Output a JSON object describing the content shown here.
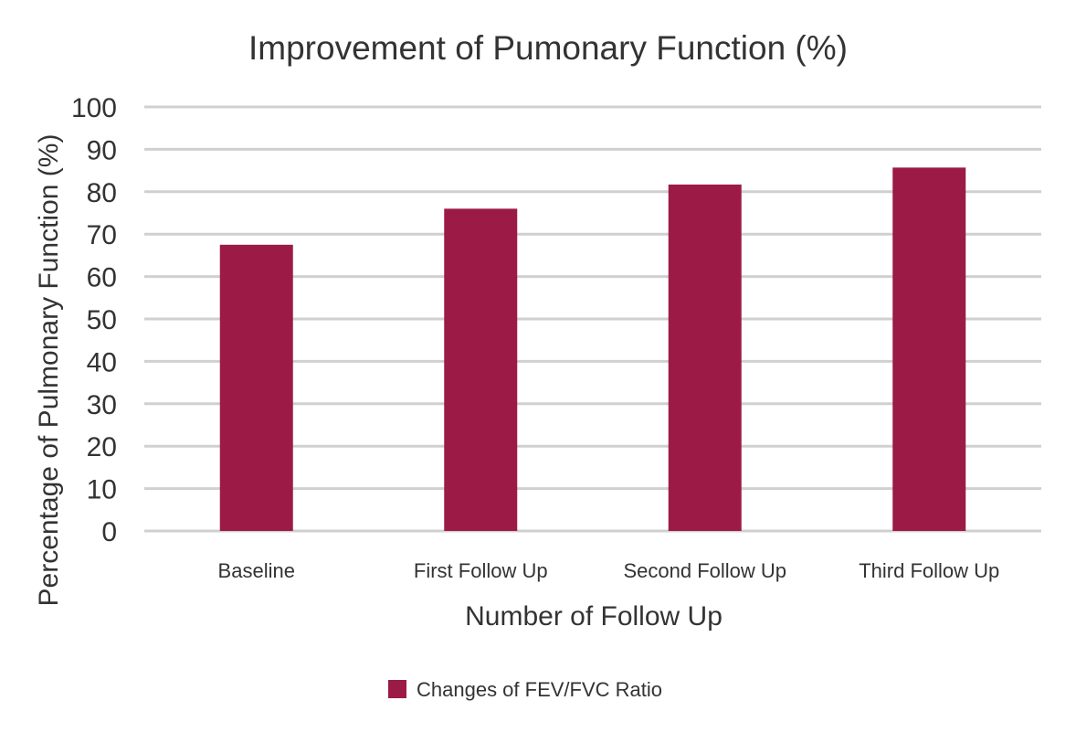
{
  "chart_data": {
    "type": "bar",
    "title": "Improvement of Pumonary Function (%)",
    "xlabel": "Number of Follow Up",
    "ylabel": "Percentage of Pulmonary Function (%)",
    "categories": [
      "Baseline",
      "First Follow Up",
      "Second Follow Up",
      "Third Follow Up"
    ],
    "series": [
      {
        "name": "Changes of FEV/FVC Ratio",
        "values": [
          67.5,
          76,
          81.7,
          85.7
        ],
        "color": "#9B1B46"
      }
    ],
    "ylim": [
      0,
      100
    ],
    "yticks": [
      0,
      10,
      20,
      30,
      40,
      50,
      60,
      70,
      80,
      90,
      100
    ],
    "grid": true,
    "gridColor": "#D0D0D0",
    "legend_position": "bottom"
  }
}
